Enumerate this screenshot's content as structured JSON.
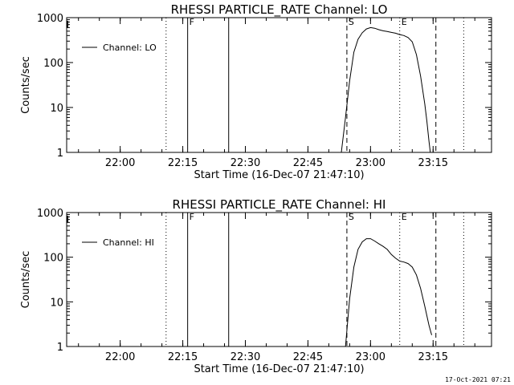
{
  "footer": {
    "timestamp": "17-Oct-2021 07:21"
  },
  "chart_data": [
    {
      "type": "line",
      "title": "RHESSI PARTICLE_RATE Channel: LO",
      "xlabel": "Start Time (16-Dec-07 21:47:10)",
      "ylabel": "Counts/sec",
      "yscale": "log",
      "ylim": [
        1,
        1000
      ],
      "xlim": [
        "21:47:10",
        "23:29:00"
      ],
      "y_ticks": [
        "1",
        "10",
        "100",
        "1000"
      ],
      "x_ticks": [
        "22:00",
        "22:15",
        "22:30",
        "22:45",
        "23:00",
        "23:15"
      ],
      "legend": {
        "position": "top-left",
        "entries": [
          "Channel: LO"
        ]
      },
      "grid": false,
      "series": [
        {
          "name": "Channel: LO",
          "x": [
            "22:53",
            "22:54",
            "22:55",
            "22:56",
            "22:57",
            "22:58",
            "22:59",
            "23:00",
            "23:01",
            "23:02",
            "23:03",
            "23:04",
            "23:05",
            "23:06",
            "23:07",
            "23:08",
            "23:09",
            "23:10",
            "23:11",
            "23:12",
            "23:13",
            "23:13:30",
            "23:14",
            "23:14:20"
          ],
          "y": [
            1,
            6,
            40,
            170,
            330,
            460,
            560,
            600,
            580,
            540,
            510,
            490,
            470,
            450,
            420,
            400,
            360,
            290,
            150,
            50,
            12,
            5,
            1.8,
            1
          ]
        }
      ],
      "markers": [
        {
          "time": "22:11:00",
          "style": "dotted",
          "label": ""
        },
        {
          "time": "22:16:10",
          "style": "solid",
          "label": "F"
        },
        {
          "time": "22:26:00",
          "style": "solid",
          "label": ""
        },
        {
          "time": "22:54:20",
          "style": "dashed",
          "label": "S"
        },
        {
          "time": "23:07:00",
          "style": "dotted",
          "label": "E"
        },
        {
          "time": "23:15:40",
          "style": "dashed",
          "label": ""
        },
        {
          "time": "23:22:20",
          "style": "dotted",
          "label": ""
        }
      ]
    },
    {
      "type": "line",
      "title": "RHESSI PARTICLE_RATE Channel: HI",
      "xlabel": "Start Time (16-Dec-07 21:47:10)",
      "ylabel": "Counts/sec",
      "yscale": "log",
      "ylim": [
        1,
        1000
      ],
      "xlim": [
        "21:47:10",
        "23:29:00"
      ],
      "y_ticks": [
        "1",
        "10",
        "100",
        "1000"
      ],
      "x_ticks": [
        "22:00",
        "22:15",
        "22:30",
        "22:45",
        "23:00",
        "23:15"
      ],
      "legend": {
        "position": "top-left",
        "entries": [
          "Channel: HI"
        ]
      },
      "grid": false,
      "series": [
        {
          "name": "Channel: HI",
          "x": [
            "22:54",
            "22:55",
            "22:56",
            "22:57",
            "22:58",
            "22:59",
            "23:00",
            "23:01",
            "23:02",
            "23:03",
            "23:04",
            "23:05",
            "23:06",
            "23:07",
            "23:08",
            "23:09",
            "23:10",
            "23:11",
            "23:12",
            "23:13",
            "23:14",
            "23:14:40"
          ],
          "y": [
            1,
            12,
            60,
            150,
            220,
            260,
            260,
            230,
            200,
            175,
            150,
            115,
            95,
            82,
            78,
            72,
            60,
            40,
            20,
            8,
            3,
            1.8
          ]
        }
      ],
      "markers": [
        {
          "time": "22:11:00",
          "style": "dotted",
          "label": ""
        },
        {
          "time": "22:16:10",
          "style": "solid",
          "label": "F"
        },
        {
          "time": "22:26:00",
          "style": "solid",
          "label": ""
        },
        {
          "time": "22:54:20",
          "style": "dashed",
          "label": "S"
        },
        {
          "time": "23:07:00",
          "style": "dotted",
          "label": "E"
        },
        {
          "time": "23:15:40",
          "style": "dashed",
          "label": ""
        },
        {
          "time": "23:22:20",
          "style": "dotted",
          "label": ""
        }
      ]
    }
  ]
}
